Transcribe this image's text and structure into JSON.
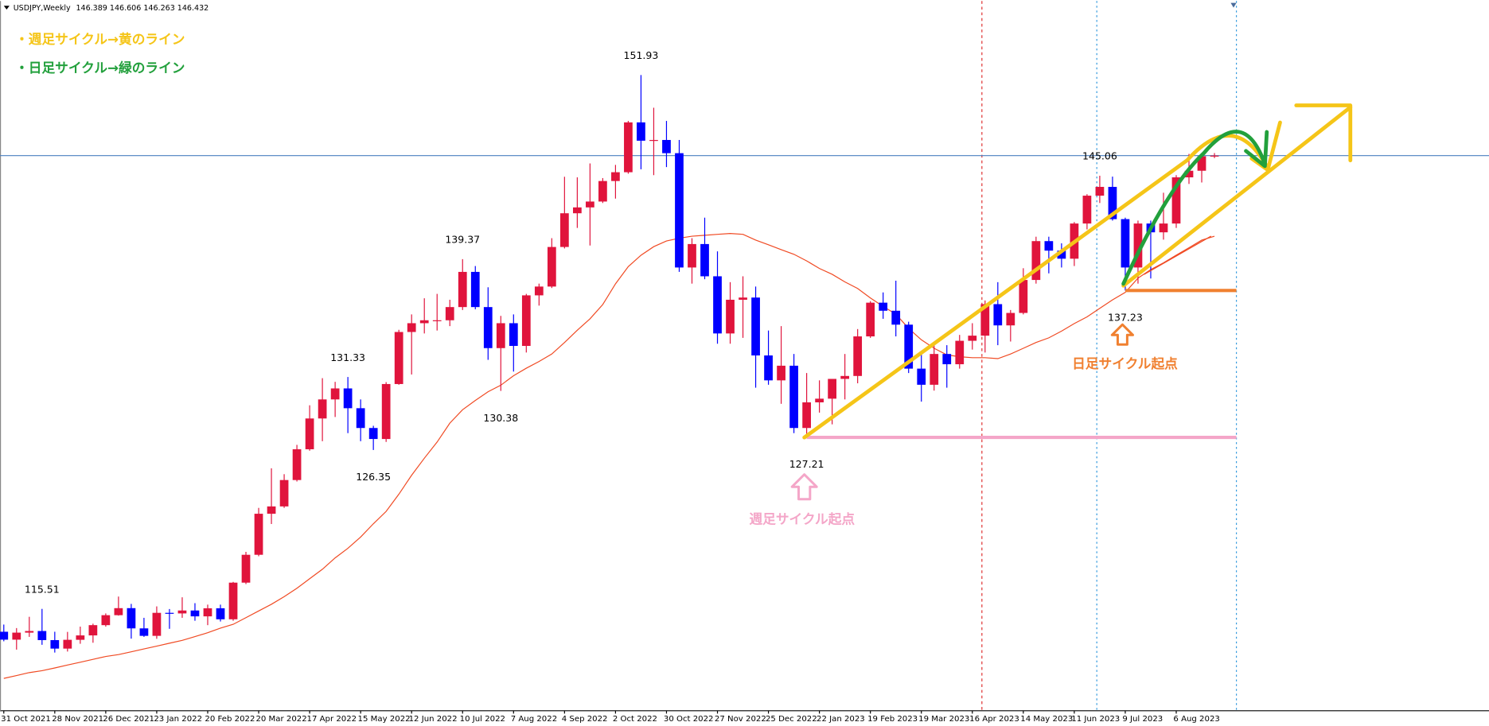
{
  "chart_data": {
    "type": "candlestick",
    "symbol": "USDJPY,Weekly",
    "ohlc_text": "146.389 146.606 146.263 146.432",
    "notes": [
      "・週足サイクル→黄のライン",
      "・日足サイクル→緑のライン"
    ],
    "start_labels": [
      "週足サイクル起点",
      "日足サイクル起点"
    ],
    "categories": [
      "31 Oct 2021",
      null,
      null,
      null,
      "28 Nov 2021",
      null,
      null,
      null,
      "26 Dec 2021",
      null,
      null,
      null,
      "23 Jan 2022",
      null,
      null,
      null,
      "20 Feb 2022",
      null,
      null,
      null,
      "20 Mar 2022",
      null,
      null,
      null,
      "17 Apr 2022",
      null,
      null,
      null,
      "15 May 2022",
      null,
      null,
      null,
      "12 Jun 2022",
      null,
      null,
      null,
      "10 Jul 2022",
      null,
      null,
      null,
      "7 Aug 2022",
      null,
      null,
      null,
      "4 Sep 2022",
      null,
      null,
      null,
      "2 Oct 2022",
      null,
      null,
      null,
      "30 Oct 2022",
      null,
      null,
      null,
      "27 Nov 2022",
      null,
      null,
      null,
      "25 Dec 2022",
      null,
      null,
      null,
      "22 Jan 2023",
      null,
      null,
      null,
      "19 Feb 2023",
      null,
      null,
      null,
      "19 Mar 2023",
      null,
      null,
      null,
      "16 Apr 2023",
      null,
      null,
      null,
      "14 May 2023",
      null,
      null,
      null,
      "11 Jun 2023",
      null,
      null,
      null,
      "9 Jul 2023",
      null,
      null,
      null,
      "6 Aug 2023",
      null,
      null,
      null
    ],
    "open": [
      113.95,
      113.41,
      113.89,
      114.0,
      113.38,
      112.8,
      113.4,
      113.7,
      114.4,
      115.08,
      115.56,
      114.18,
      113.67,
      115.24,
      115.2,
      115.4,
      115.0,
      115.55,
      114.8,
      117.3,
      119.2,
      122.0,
      122.5,
      124.3,
      126.4,
      128.5,
      129.8,
      130.55,
      129.2,
      127.85,
      127.1,
      130.85,
      134.4,
      135.0,
      135.2,
      135.2,
      136.1,
      138.5,
      136.1,
      133.3,
      135.0,
      133.45,
      136.9,
      137.5,
      140.2,
      142.5,
      142.9,
      143.3,
      144.7,
      145.3,
      148.7,
      147.45,
      147.5,
      146.6,
      138.8,
      140.4,
      138.2,
      134.3,
      136.6,
      136.75,
      132.8,
      131.1,
      132.1,
      127.85,
      129.6,
      129.85,
      131.2,
      131.4,
      134.1,
      136.4,
      135.85,
      134.9,
      131.9,
      130.8,
      132.9,
      132.2,
      133.8,
      134.15,
      136.3,
      134.85,
      135.7,
      137.95,
      140.6,
      139.95,
      139.4,
      141.8,
      143.7,
      144.3,
      142.1,
      138.8,
      141.8,
      141.2,
      141.8,
      144.95,
      145.4,
      146.389
    ],
    "high": [
      114.44,
      114.2,
      114.97,
      115.51,
      113.95,
      113.94,
      114.3,
      114.5,
      115.2,
      116.35,
      115.85,
      114.9,
      115.68,
      115.5,
      116.3,
      115.9,
      115.8,
      115.8,
      117.35,
      119.4,
      122.4,
      125.1,
      124.7,
      126.7,
      129.4,
      131.25,
      131.0,
      131.33,
      129.8,
      128.0,
      130.98,
      134.55,
      135.6,
      136.7,
      137.0,
      136.6,
      139.37,
      138.9,
      137.45,
      135.5,
      135.6,
      137.0,
      137.7,
      140.8,
      144.99,
      144.95,
      145.9,
      144.9,
      145.8,
      148.8,
      151.93,
      149.7,
      148.8,
      147.5,
      140.8,
      142.2,
      139.9,
      137.8,
      138.2,
      137.5,
      134.5,
      134.8,
      132.9,
      131.6,
      131.1,
      131.2,
      132.9,
      134.6,
      136.5,
      137.1,
      137.9,
      135.1,
      133.0,
      133.6,
      133.5,
      134.2,
      135.0,
      136.55,
      137.8,
      135.9,
      138.75,
      140.9,
      140.9,
      140.45,
      141.9,
      143.8,
      145.06,
      145.0,
      142.2,
      142.0,
      142.0,
      143.9,
      145.1,
      146.55,
      146.6,
      146.606
    ],
    "low": [
      113.3,
      112.73,
      113.6,
      113.06,
      112.53,
      112.6,
      113.13,
      113.2,
      114.3,
      115.05,
      113.48,
      113.6,
      113.47,
      114.15,
      114.9,
      114.7,
      114.4,
      114.65,
      114.7,
      117.2,
      119.1,
      121.3,
      122.4,
      124.2,
      126.3,
      126.95,
      128.6,
      127.5,
      126.95,
      126.35,
      126.9,
      130.8,
      131.5,
      134.3,
      134.5,
      134.8,
      135.9,
      135.95,
      132.5,
      130.38,
      131.7,
      133.0,
      136.2,
      137.4,
      140.1,
      141.5,
      140.3,
      143.2,
      143.5,
      145.2,
      145.5,
      145.1,
      145.65,
      138.5,
      137.7,
      138.0,
      133.6,
      133.6,
      134.0,
      130.6,
      130.8,
      129.5,
      127.5,
      127.21,
      128.9,
      128.1,
      129.8,
      130.9,
      134.0,
      135.3,
      134.1,
      131.6,
      129.65,
      130.4,
      130.6,
      131.9,
      133.2,
      133.0,
      133.5,
      133.75,
      135.6,
      137.7,
      138.4,
      138.8,
      138.9,
      141.4,
      143.2,
      142.0,
      137.23,
      137.7,
      138.05,
      140.7,
      141.5,
      144.5,
      144.6,
      146.263
    ],
    "close": [
      113.41,
      113.89,
      114.0,
      113.38,
      112.8,
      113.4,
      113.7,
      114.4,
      115.08,
      115.56,
      114.18,
      113.67,
      115.24,
      115.2,
      115.4,
      115.0,
      115.55,
      114.8,
      117.3,
      119.2,
      122.0,
      122.5,
      124.3,
      126.4,
      128.5,
      129.8,
      130.55,
      129.2,
      127.85,
      127.1,
      130.85,
      134.4,
      135.0,
      135.2,
      135.2,
      136.1,
      138.5,
      136.1,
      133.3,
      135.0,
      133.45,
      136.9,
      137.5,
      140.2,
      142.5,
      142.9,
      143.3,
      144.7,
      145.3,
      148.7,
      147.45,
      147.5,
      146.6,
      138.8,
      140.4,
      138.2,
      134.3,
      136.6,
      136.75,
      132.8,
      131.1,
      132.1,
      127.85,
      129.6,
      129.85,
      131.2,
      131.4,
      134.1,
      136.4,
      135.85,
      134.9,
      131.9,
      130.8,
      132.9,
      132.2,
      133.8,
      134.15,
      136.3,
      134.85,
      135.7,
      137.95,
      140.6,
      139.95,
      139.4,
      141.8,
      143.7,
      144.3,
      142.1,
      138.8,
      141.8,
      141.2,
      141.8,
      144.95,
      145.4,
      146.389,
      146.432
    ],
    "up_color": "#e0143c",
    "down_color": "#0000ff",
    "ma": {
      "color": "#f04a23",
      "values": [
        110.77,
        110.96,
        111.16,
        111.29,
        111.48,
        111.68,
        111.87,
        112.07,
        112.26,
        112.39,
        112.58,
        112.78,
        112.97,
        113.17,
        113.36,
        113.62,
        113.88,
        114.2,
        114.46,
        114.91,
        115.37,
        115.82,
        116.34,
        116.92,
        117.57,
        118.21,
        118.99,
        119.64,
        120.41,
        121.32,
        122.16,
        123.33,
        124.62,
        125.79,
        126.89,
        128.18,
        129.09,
        129.73,
        130.32,
        130.77,
        131.42,
        131.93,
        132.39,
        132.9,
        133.68,
        134.52,
        135.3,
        136.27,
        137.69,
        138.86,
        139.64,
        140.22,
        140.61,
        140.8,
        140.93,
        141.0,
        141.06,
        141.12,
        141.06,
        140.67,
        140.35,
        140.02,
        139.7,
        139.25,
        138.73,
        138.34,
        137.82,
        137.37,
        136.72,
        136.14,
        135.62,
        134.65,
        133.87,
        133.29,
        132.84,
        132.71,
        132.65,
        132.65,
        132.58,
        132.9,
        133.29,
        133.68,
        134.0,
        134.46,
        134.98,
        135.43,
        136.01,
        136.59,
        137.11,
        138.08,
        138.66,
        139.12,
        139.64,
        140.15,
        140.67,
        140.93
      ]
    },
    "high_labels": [
      115.51,
      131.33,
      139.37,
      151.93,
      145.06
    ],
    "low_labels": [
      126.35,
      130.38,
      127.21,
      137.23
    ],
    "ylim": [
      108.56,
      156.98
    ]
  }
}
